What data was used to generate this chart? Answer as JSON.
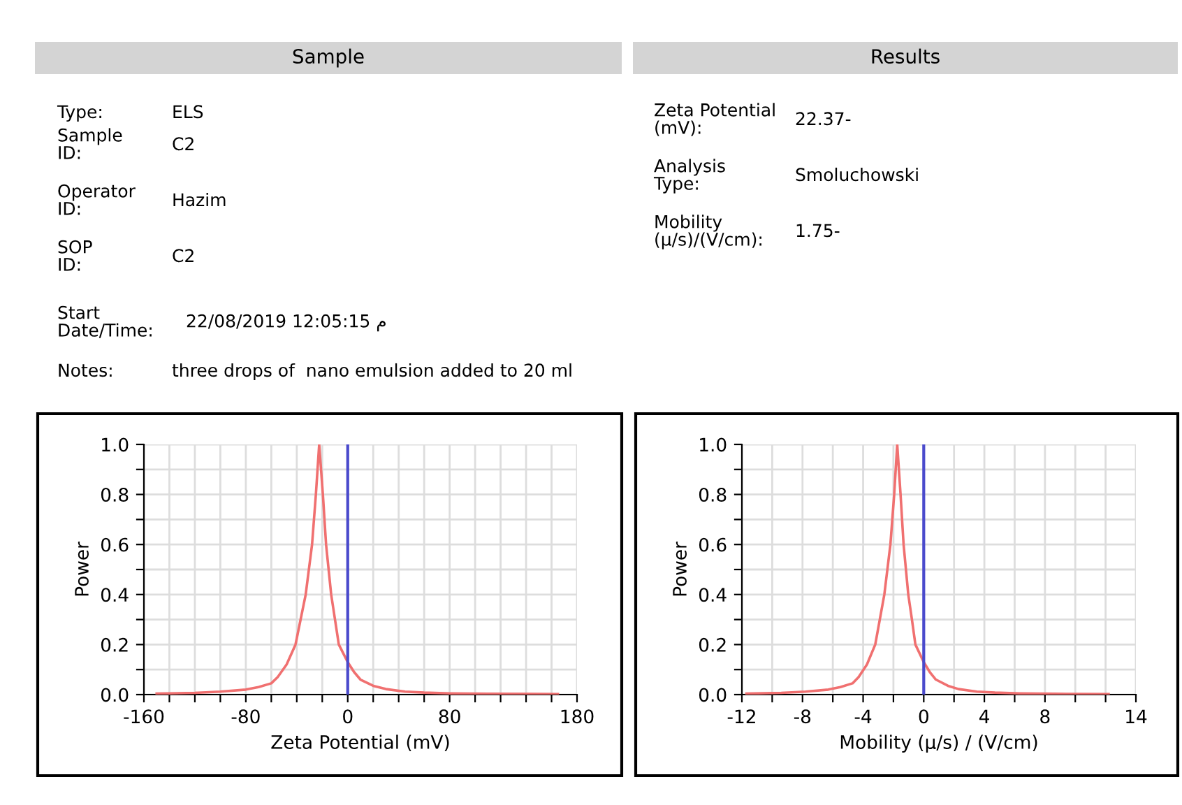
{
  "chart_data": [
    {
      "type": "other",
      "title": "Sample",
      "annotations": [
        "Type:",
        "ELS",
        "Sample\nID:",
        "C2",
        "Operator\nID:",
        "Hazim",
        "SOP\nID:",
        "C2",
        "Start\nDate/Time:",
        "22/08/2019 12:05:15 م",
        "Notes:",
        "three drops of  nano emulsion added to 20 ml"
      ]
    },
    {
      "type": "other",
      "title": "Results",
      "annotations": [
        "Zeta Potential\n(mV):",
        "22.37-",
        "Analysis\nType:",
        "Smoluchowski",
        "Mobility\n(µ/s)/(V/cm):",
        "1.75-"
      ]
    },
    {
      "type": "line",
      "xlabel": "Zeta Potential (mV)",
      "ylabel": "Power",
      "grid": true,
      "line_style": "solid",
      "xlim": [
        -160,
        180
      ],
      "ylim": [
        0,
        1
      ],
      "xticks": [
        -160,
        {
          "value": -140,
          "label": null
        },
        {
          "value": -120,
          "label": null
        },
        {
          "value": -100,
          "label": null
        },
        -80,
        {
          "value": -60,
          "label": null
        },
        {
          "value": -40,
          "label": null
        },
        {
          "value": -20,
          "label": null
        },
        0,
        {
          "value": 20,
          "label": null
        },
        {
          "value": 40,
          "label": null
        },
        {
          "value": 60,
          "label": null
        },
        80,
        {
          "value": 100,
          "label": null
        },
        {
          "value": 120,
          "label": null
        },
        {
          "value": 140,
          "label": null
        },
        {
          "value": 160,
          "label": null
        },
        180
      ],
      "yticks": [
        {
          "value": 0,
          "label": "0.0"
        },
        {
          "value": 0.1,
          "label": null
        },
        {
          "value": 0.2,
          "label": "0.2"
        },
        {
          "value": 0.3,
          "label": null
        },
        {
          "value": 0.4,
          "label": "0.4"
        },
        {
          "value": 0.5,
          "label": null
        },
        {
          "value": 0.6,
          "label": "0.6"
        },
        {
          "value": 0.7,
          "label": null
        },
        {
          "value": 0.8,
          "label": "0.8"
        },
        {
          "value": 0.9,
          "label": null
        },
        {
          "value": 1,
          "label": "1.0"
        }
      ],
      "ref_lines": [
        {
          "axis": "x",
          "value": 0,
          "color": "#4a4acc",
          "line_style": "solid"
        }
      ],
      "series": [
        {
          "color": "#f07070",
          "x": [
            -150,
            -120,
            -100,
            -80,
            -70,
            -60,
            -55,
            -48,
            -41,
            -37,
            -33,
            -28,
            -25,
            -22.4,
            -19.5,
            -17,
            -13,
            -10,
            -7,
            0,
            5,
            10,
            20,
            30,
            45,
            60,
            80,
            110,
            165
          ],
          "values": [
            0.004,
            0.007,
            0.012,
            0.02,
            0.03,
            0.045,
            0.07,
            0.12,
            0.2,
            0.3,
            0.4,
            0.6,
            0.8,
            1.0,
            0.8,
            0.6,
            0.4,
            0.3,
            0.2,
            0.13,
            0.09,
            0.06,
            0.035,
            0.022,
            0.012,
            0.008,
            0.005,
            0.003,
            0.002
          ]
        }
      ]
    },
    {
      "type": "line",
      "xlabel": "Mobility (µ/s) / (V/cm)",
      "ylabel": "Power",
      "grid": true,
      "line_style": "solid",
      "xlim": [
        -12,
        14
      ],
      "ylim": [
        0,
        1
      ],
      "xticks": [
        -12,
        {
          "value": -10,
          "label": null
        },
        -8,
        {
          "value": -6,
          "label": null
        },
        -4,
        {
          "value": -2,
          "label": null
        },
        0,
        {
          "value": 2,
          "label": null
        },
        4,
        {
          "value": 6,
          "label": null
        },
        8,
        {
          "value": 10,
          "label": null
        },
        {
          "value": 12,
          "label": null
        },
        14
      ],
      "yticks": [
        {
          "value": 0,
          "label": "0.0"
        },
        {
          "value": 0.1,
          "label": null
        },
        {
          "value": 0.2,
          "label": "0.2"
        },
        {
          "value": 0.3,
          "label": null
        },
        {
          "value": 0.4,
          "label": "0.4"
        },
        {
          "value": 0.5,
          "label": null
        },
        {
          "value": 0.6,
          "label": "0.6"
        },
        {
          "value": 0.7,
          "label": null
        },
        {
          "value": 0.8,
          "label": "0.8"
        },
        {
          "value": 0.9,
          "label": null
        },
        {
          "value": 1,
          "label": "1.0"
        }
      ],
      "ref_lines": [
        {
          "axis": "x",
          "value": 0,
          "color": "#4a4acc",
          "line_style": "solid"
        }
      ],
      "series": [
        {
          "color": "#f07070",
          "x": [
            -11.7,
            -9.4,
            -7.8,
            -6.3,
            -5.5,
            -4.7,
            -4.3,
            -3.75,
            -3.2,
            -2.9,
            -2.6,
            -2.2,
            -1.95,
            -1.75,
            -1.53,
            -1.33,
            -1.02,
            -0.78,
            -0.55,
            0,
            0.4,
            0.8,
            1.6,
            2.3,
            3.5,
            4.7,
            6.3,
            8.6,
            12.2
          ],
          "values": [
            0.004,
            0.007,
            0.012,
            0.02,
            0.03,
            0.045,
            0.07,
            0.12,
            0.2,
            0.3,
            0.4,
            0.6,
            0.8,
            1.0,
            0.8,
            0.6,
            0.4,
            0.3,
            0.2,
            0.13,
            0.09,
            0.06,
            0.035,
            0.022,
            0.012,
            0.008,
            0.005,
            0.003,
            0.002
          ]
        }
      ]
    }
  ]
}
